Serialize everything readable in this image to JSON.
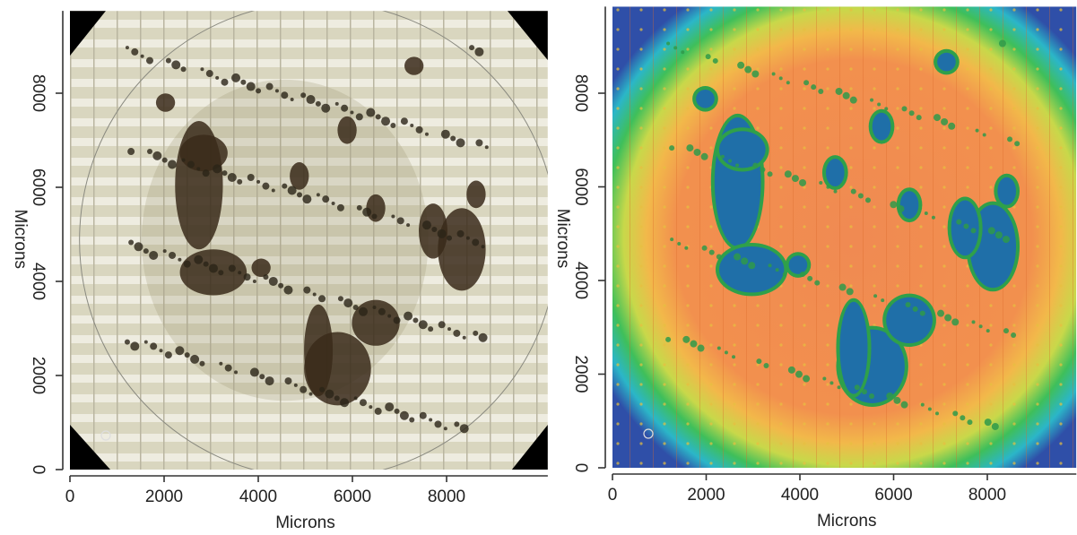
{
  "chart_data": [
    {
      "type": "image",
      "xlabel": "Microns",
      "ylabel": "Microns",
      "xlim": [
        0,
        10150
      ],
      "ylim": [
        0,
        9750
      ],
      "xticks": [
        0,
        2000,
        4000,
        6000,
        8000
      ],
      "yticks": [
        0,
        2000,
        4000,
        6000,
        8000
      ]
    },
    {
      "type": "image",
      "xlabel": "Microns",
      "ylabel": "Microns",
      "xlim": [
        0,
        9900
      ],
      "ylim": [
        0,
        9850
      ],
      "xticks": [
        0,
        2000,
        4000,
        6000,
        8000
      ],
      "yticks": [
        0,
        2000,
        4000,
        6000,
        8000
      ]
    }
  ]
}
